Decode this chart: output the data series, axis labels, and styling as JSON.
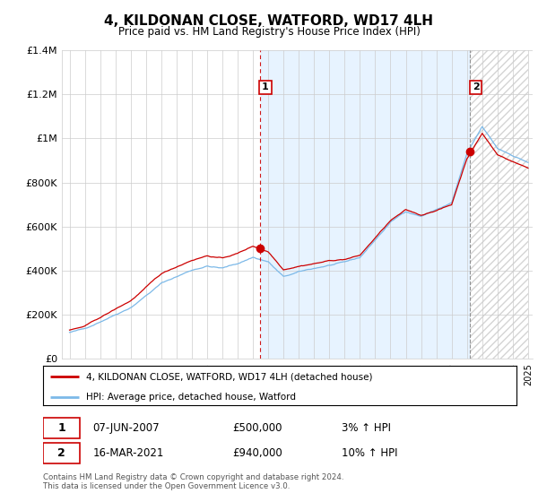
{
  "title": "4, KILDONAN CLOSE, WATFORD, WD17 4LH",
  "subtitle": "Price paid vs. HM Land Registry's House Price Index (HPI)",
  "legend_line1": "4, KILDONAN CLOSE, WATFORD, WD17 4LH (detached house)",
  "legend_line2": "HPI: Average price, detached house, Watford",
  "annotation1_date": "07-JUN-2007",
  "annotation1_price": "£500,000",
  "annotation1_hpi": "3% ↑ HPI",
  "annotation2_date": "16-MAR-2021",
  "annotation2_price": "£940,000",
  "annotation2_hpi": "10% ↑ HPI",
  "copyright": "Contains HM Land Registry data © Crown copyright and database right 2024.\nThis data is licensed under the Open Government Licence v3.0.",
  "hpi_color": "#7cb9e8",
  "price_color": "#cc0000",
  "dashed_color": "#cc0000",
  "fill_color": "#ddeeff",
  "background_color": "#ffffff",
  "grid_color": "#cccccc",
  "ylim": [
    0,
    1400000
  ],
  "yticks": [
    0,
    200000,
    400000,
    600000,
    800000,
    1000000,
    1200000,
    1400000
  ],
  "ytick_labels": [
    "£0",
    "£200K",
    "£400K",
    "£600K",
    "£800K",
    "£1M",
    "£1.2M",
    "£1.4M"
  ],
  "sale1_year": 2007.44,
  "sale1_price": 500000,
  "sale2_year": 2021.21,
  "sale2_price": 940000,
  "xmin": 1995,
  "xmax": 2025
}
